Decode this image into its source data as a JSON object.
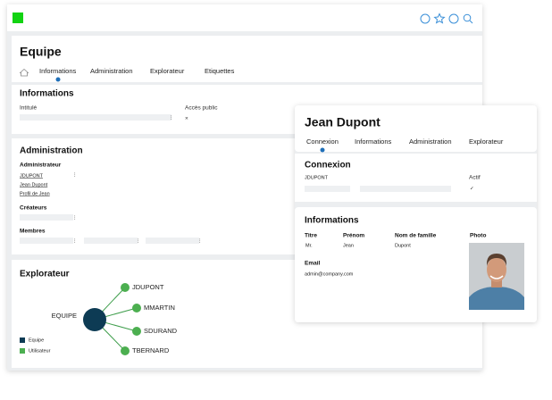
{
  "header": {
    "title": "Equipe",
    "tabs": [
      "Informations",
      "Administration",
      "Explorateur",
      "Etiquettes"
    ]
  },
  "informations": {
    "title": "Informations",
    "fields": [
      "Intitulé",
      "Accès public"
    ],
    "public_value": "×"
  },
  "administration": {
    "title": "Administration",
    "administrateur": {
      "label": "Administrateur",
      "items": [
        "JDUPONT",
        "Jean Dupont",
        "Profil de Jean"
      ]
    },
    "createurs": "Créateurs",
    "membres": "Membres"
  },
  "explorateur": {
    "title": "Explorateur",
    "center": "EQUIPE",
    "nodes": [
      "JDUPONT",
      "MMARTIN",
      "SDURAND",
      "TBERNARD"
    ],
    "legend": [
      "Equipe",
      "Utilisateur"
    ]
  },
  "profile": {
    "title": "Jean Dupont",
    "tabs": [
      "Connexion",
      "Informations",
      "Administration",
      "Explorateur"
    ],
    "connexion": {
      "title": "Connexion",
      "login": "JDUPONT",
      "active_label": "Actif",
      "active_value": "✓"
    },
    "informations": {
      "title": "Informations",
      "headers": [
        "Titre",
        "Prénom",
        "Nom de famille",
        "Photo"
      ],
      "values": [
        "Mr.",
        "Jean",
        "Dupont"
      ],
      "email_label": "Email",
      "email": "admin@company.com"
    }
  }
}
